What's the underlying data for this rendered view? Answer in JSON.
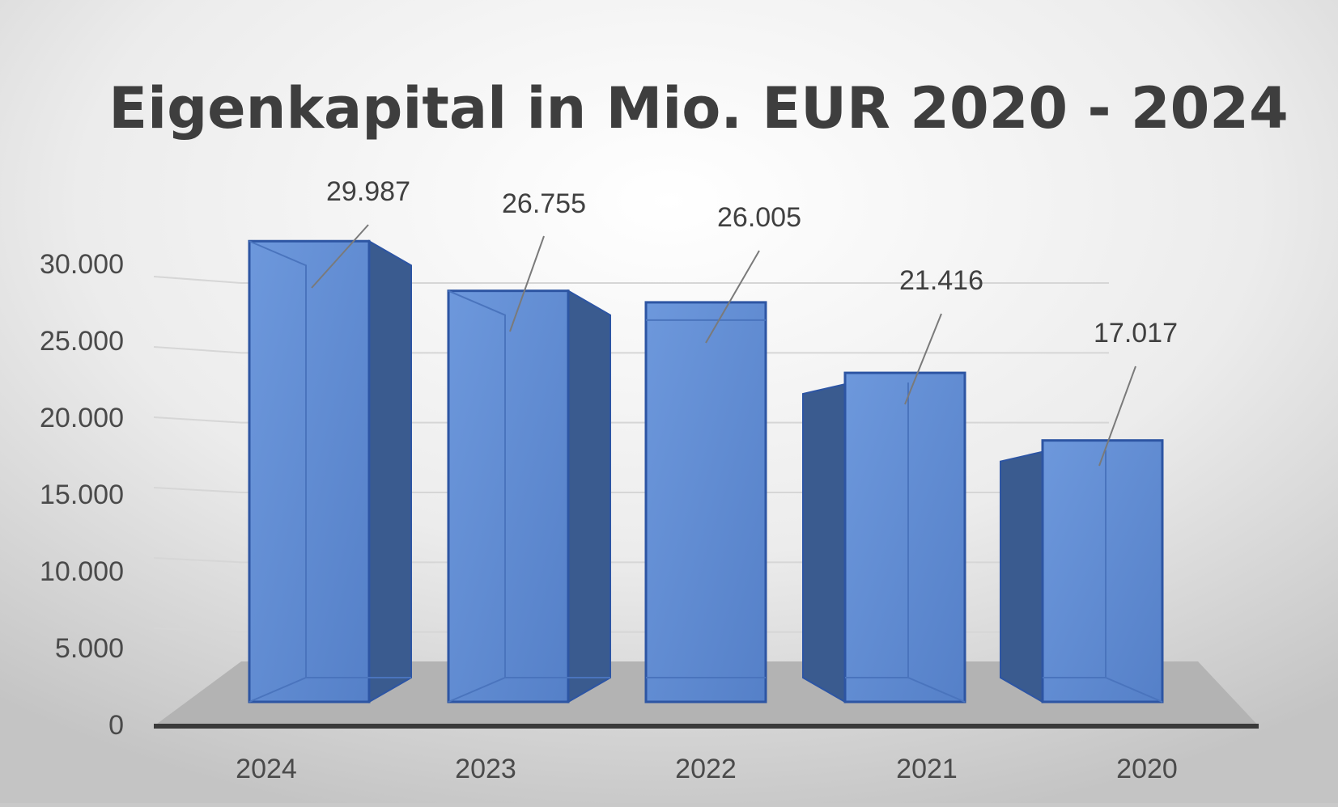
{
  "chart_data": {
    "type": "bar",
    "title": "Eigenkapital in Mio. EUR 2020 - 2024",
    "xlabel": "",
    "ylabel": "",
    "categories": [
      "2024",
      "2023",
      "2022",
      "2021",
      "2020"
    ],
    "series": [
      {
        "values": [
          29987,
          26755,
          26005,
          21416,
          17017
        ],
        "data_labels": [
          "29.987",
          "26.755",
          "26.005",
          "21.416",
          "17.017"
        ]
      }
    ],
    "ylim": [
      0,
      30000
    ],
    "yticks": [
      {
        "value": 0,
        "label": "0"
      },
      {
        "value": 5000,
        "label": "5.000"
      },
      {
        "value": 10000,
        "label": "10.000"
      },
      {
        "value": 15000,
        "label": "15.000"
      },
      {
        "value": 20000,
        "label": "20.000"
      },
      {
        "value": 25000,
        "label": "25.000"
      },
      {
        "value": 30000,
        "label": "30.000"
      }
    ],
    "grid": true,
    "legend": "none",
    "style": "3d-column",
    "colors": {
      "bar_front": "#5b87d0",
      "bar_side": "#3a5b8f",
      "bar_top": "#6f9be0",
      "bar_edge": "#2d55a3",
      "floor": "#b3b3b3",
      "axis": "#3a3a3a"
    }
  }
}
